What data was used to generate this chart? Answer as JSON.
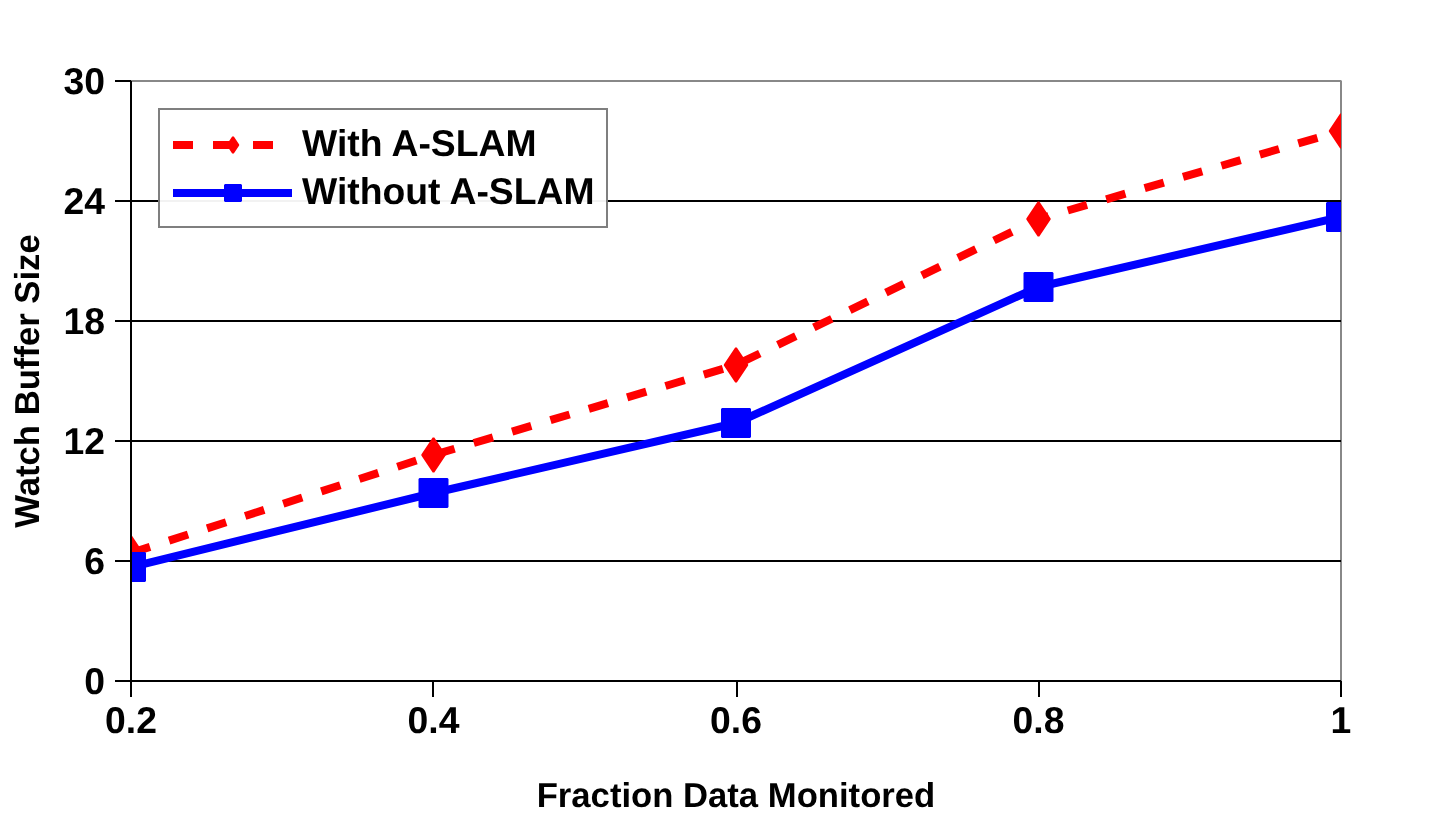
{
  "chart_data": {
    "type": "line",
    "xlabel": "Fraction Data Monitored",
    "ylabel": "Watch Buffer Size",
    "x": [
      0.2,
      0.4,
      0.6,
      0.8,
      1
    ],
    "series": [
      {
        "name": "With A-SLAM",
        "color": "#ff0000",
        "marker": "diamond",
        "line_style": "dashed",
        "values": [
          6.4,
          11.3,
          15.8,
          23.1,
          27.5
        ]
      },
      {
        "name": "Without A-SLAM",
        "color": "#0000ff",
        "marker": "square",
        "line_style": "solid",
        "values": [
          5.7,
          9.4,
          12.9,
          19.7,
          23.2
        ]
      }
    ],
    "xlim": [
      0.2,
      1
    ],
    "xticks": [
      0.2,
      0.4,
      0.6,
      0.8,
      1
    ],
    "ylim": [
      0,
      30
    ],
    "yticks": [
      0,
      6,
      12,
      18,
      24,
      30
    ],
    "grid": "y",
    "legend": "top left"
  }
}
